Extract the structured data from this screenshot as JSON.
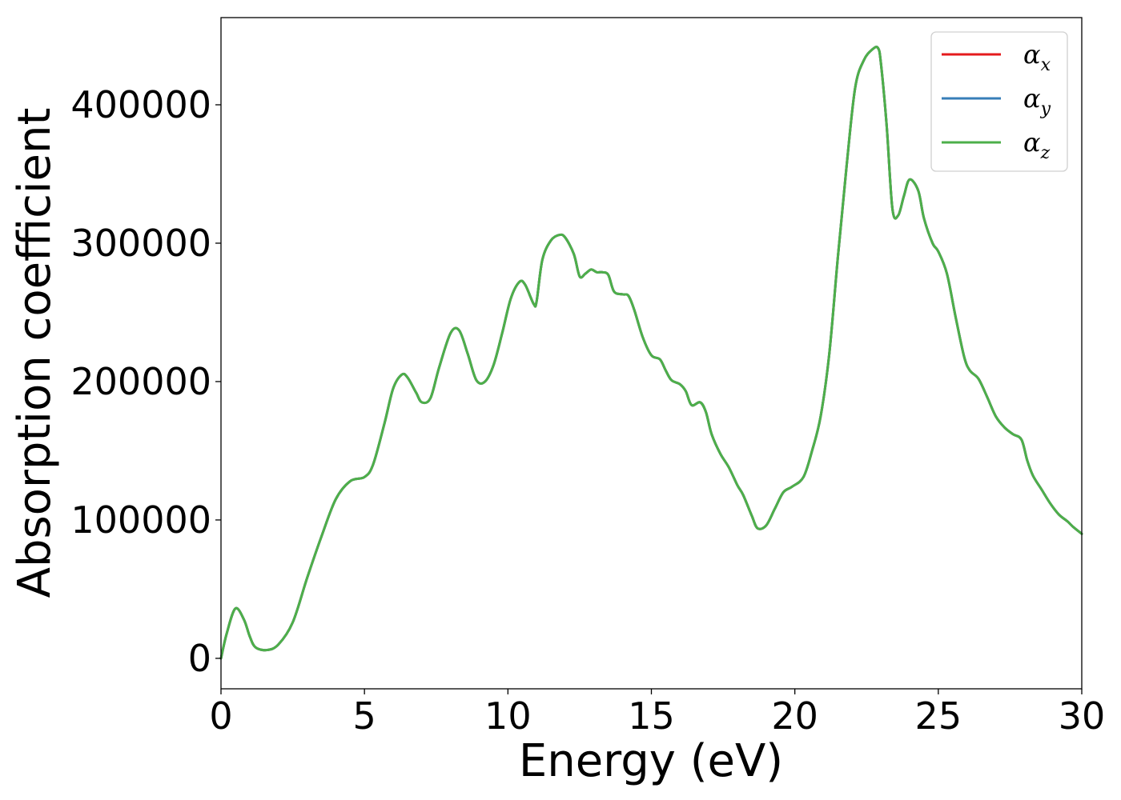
{
  "chart_data": {
    "type": "line",
    "title": "",
    "xlabel": "Energy (eV)",
    "ylabel": "Absorption coefficient",
    "xlim": [
      0,
      30
    ],
    "ylim": [
      -22000,
      463000
    ],
    "xticks": [
      0,
      5,
      10,
      15,
      20,
      25,
      30
    ],
    "xtick_labels": [
      "0",
      "5",
      "10",
      "15",
      "20",
      "25",
      "30"
    ],
    "yticks": [
      0,
      100000,
      200000,
      300000,
      400000
    ],
    "ytick_labels": [
      "0",
      "100000",
      "200000",
      "300000",
      "400000"
    ],
    "grid": false,
    "legend_position": "top-right",
    "x": [
      0,
      0.2,
      0.5,
      0.8,
      1.0,
      1.2,
      1.6,
      2.0,
      2.5,
      3.0,
      3.5,
      4.0,
      4.5,
      5.0,
      5.3,
      5.7,
      6.0,
      6.3,
      6.5,
      6.8,
      7.0,
      7.3,
      7.6,
      8.0,
      8.3,
      8.6,
      8.9,
      9.2,
      9.5,
      9.8,
      10.1,
      10.4,
      10.6,
      10.9,
      11.0,
      11.2,
      11.5,
      11.8,
      12.0,
      12.3,
      12.5,
      12.7,
      12.9,
      13.1,
      13.3,
      13.5,
      13.7,
      14.0,
      14.2,
      14.4,
      14.7,
      15.0,
      15.3,
      15.5,
      15.7,
      16.0,
      16.2,
      16.4,
      16.7,
      16.9,
      17.1,
      17.4,
      17.7,
      18.0,
      18.2,
      18.5,
      18.7,
      19.0,
      19.3,
      19.6,
      19.9,
      20.3,
      20.6,
      20.9,
      21.2,
      21.5,
      21.8,
      22.1,
      22.4,
      22.7,
      22.9,
      23.0,
      23.2,
      23.4,
      23.6,
      23.8,
      24.0,
      24.3,
      24.5,
      24.8,
      25.0,
      25.3,
      25.6,
      25.9,
      26.1,
      26.4,
      26.7,
      27.0,
      27.3,
      27.6,
      27.9,
      28.1,
      28.3,
      28.6,
      28.9,
      29.2,
      29.5,
      29.7,
      30.0
    ],
    "series": [
      {
        "name": "αx",
        "symbol": "α",
        "subscript": "x",
        "color": "#e41a1c",
        "values": [
          0,
          18000,
          36000,
          28000,
          16000,
          8000,
          6000,
          10000,
          26000,
          58000,
          88000,
          115000,
          128000,
          131000,
          140000,
          170000,
          195000,
          205000,
          203000,
          192000,
          185000,
          188000,
          210000,
          235000,
          237000,
          220000,
          201000,
          200000,
          212000,
          235000,
          260000,
          272000,
          270000,
          256000,
          258000,
          288000,
          302000,
          306000,
          304000,
          292000,
          276000,
          278000,
          281000,
          279000,
          279000,
          277000,
          265000,
          263000,
          262000,
          252000,
          232000,
          219000,
          216000,
          208000,
          201000,
          198000,
          193000,
          183000,
          185000,
          178000,
          162000,
          148000,
          138000,
          125000,
          118000,
          103000,
          94000,
          96000,
          108000,
          120000,
          124000,
          131000,
          150000,
          175000,
          220000,
          290000,
          355000,
          412000,
          432000,
          440000,
          441000,
          430000,
          385000,
          325000,
          320000,
          334000,
          346000,
          338000,
          318000,
          300000,
          294000,
          278000,
          247000,
          218000,
          208000,
          202000,
          189000,
          175000,
          167000,
          162000,
          158000,
          143000,
          132000,
          122000,
          112000,
          104000,
          99000,
          95000,
          90000
        ]
      },
      {
        "name": "αy",
        "symbol": "α",
        "subscript": "y",
        "color": "#377eb8",
        "values": [
          0,
          18000,
          36000,
          28000,
          16000,
          8000,
          6000,
          10000,
          26000,
          58000,
          88000,
          115000,
          128000,
          131000,
          140000,
          170000,
          195000,
          205000,
          203000,
          192000,
          185000,
          188000,
          210000,
          235000,
          237000,
          220000,
          201000,
          200000,
          212000,
          235000,
          260000,
          272000,
          270000,
          256000,
          258000,
          288000,
          302000,
          306000,
          304000,
          292000,
          276000,
          278000,
          281000,
          279000,
          279000,
          277000,
          265000,
          263000,
          262000,
          252000,
          232000,
          219000,
          216000,
          208000,
          201000,
          198000,
          193000,
          183000,
          185000,
          178000,
          162000,
          148000,
          138000,
          125000,
          118000,
          103000,
          94000,
          96000,
          108000,
          120000,
          124000,
          131000,
          150000,
          175000,
          220000,
          290000,
          355000,
          412000,
          432000,
          440000,
          441000,
          430000,
          385000,
          325000,
          320000,
          334000,
          346000,
          338000,
          318000,
          300000,
          294000,
          278000,
          247000,
          218000,
          208000,
          202000,
          189000,
          175000,
          167000,
          162000,
          158000,
          143000,
          132000,
          122000,
          112000,
          104000,
          99000,
          95000,
          90000
        ]
      },
      {
        "name": "αz",
        "symbol": "α",
        "subscript": "z",
        "color": "#4daf4a",
        "values": [
          0,
          18000,
          36000,
          28000,
          16000,
          8000,
          6000,
          10000,
          26000,
          58000,
          88000,
          115000,
          128000,
          131000,
          140000,
          170000,
          195000,
          205000,
          203000,
          192000,
          185000,
          188000,
          210000,
          235000,
          237000,
          220000,
          201000,
          200000,
          212000,
          235000,
          260000,
          272000,
          270000,
          256000,
          258000,
          288000,
          302000,
          306000,
          304000,
          292000,
          276000,
          278000,
          281000,
          279000,
          279000,
          277000,
          265000,
          263000,
          262000,
          252000,
          232000,
          219000,
          216000,
          208000,
          201000,
          198000,
          193000,
          183000,
          185000,
          178000,
          162000,
          148000,
          138000,
          125000,
          118000,
          103000,
          94000,
          96000,
          108000,
          120000,
          124000,
          131000,
          150000,
          175000,
          220000,
          290000,
          355000,
          412000,
          432000,
          440000,
          441000,
          430000,
          385000,
          325000,
          320000,
          334000,
          346000,
          338000,
          318000,
          300000,
          294000,
          278000,
          247000,
          218000,
          208000,
          202000,
          189000,
          175000,
          167000,
          162000,
          158000,
          143000,
          132000,
          122000,
          112000,
          104000,
          99000,
          95000,
          90000
        ]
      }
    ]
  }
}
